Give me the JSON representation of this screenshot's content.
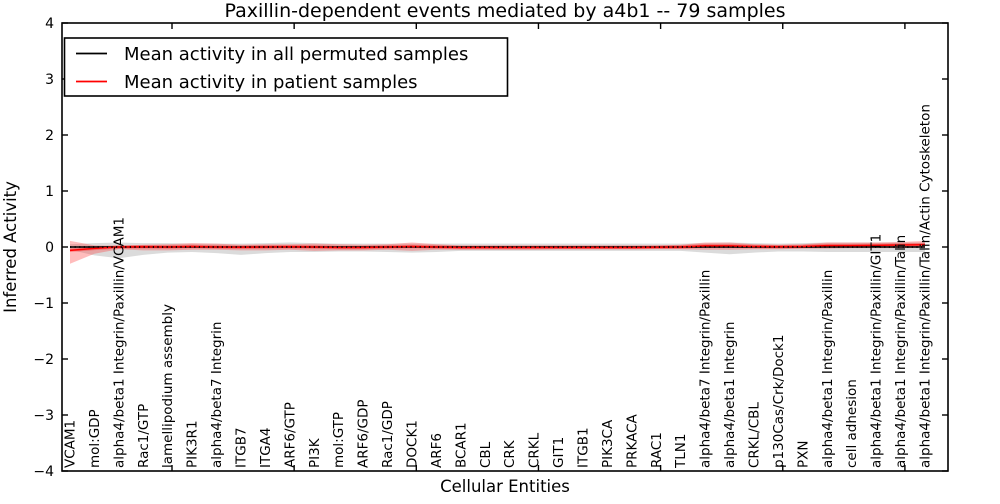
{
  "figure": {
    "background": "#ffffff"
  },
  "chart_data": {
    "type": "line",
    "title": "Paxillin-dependent events mediated by a4b1 -- 79 samples",
    "xlabel": "Cellular Entities",
    "ylabel": "Inferred Activity",
    "ylim": [
      -4,
      4
    ],
    "yticks": [
      -4,
      -3,
      -2,
      -1,
      0,
      1,
      2,
      3,
      4
    ],
    "grid": false,
    "legend": {
      "position": "upper left",
      "entries": [
        {
          "label": "Mean activity in all permuted samples",
          "color": "#000000"
        },
        {
          "label": "Mean activity in patient samples",
          "color": "#ff0000"
        }
      ]
    },
    "categories": [
      "VCAM1",
      "mol:GDP",
      "alpha4/beta1 Integrin/Paxillin/VCAM1",
      "Rac1/GTP",
      "lamellipodium assembly",
      "PIK3R1",
      "alpha4/beta7 Integrin",
      "ITGB7",
      "ITGA4",
      "ARF6/GTP",
      "PI3K",
      "mol:GTP",
      "ARF6/GDP",
      "Rac1/GDP",
      "DOCK1",
      "ARF6",
      "BCAR1",
      "CBL",
      "CRK",
      "CRKL",
      "GIT1",
      "ITGB1",
      "PIK3CA",
      "PRKACA",
      "RAC1",
      "TLN1",
      "alpha4/beta7 Integrin/Paxillin",
      "alpha4/beta1 Integrin",
      "CRKL/CBL",
      "p130Cas/Crk/Dock1",
      "PXN",
      "alpha4/beta1 Integrin/Paxillin",
      "cell adhesion",
      "alpha4/beta1 Integrin/Paxillin/GIT1",
      "alpha4/beta1 Integrin/Paxillin/Talin",
      "alpha4/beta1 Integrin/Paxillin/Talin/Actin Cytoskeleton"
    ],
    "series": [
      {
        "name": "Mean activity in all permuted samples",
        "line_color": "#000000",
        "band_color": "#999999",
        "values": [
          0,
          0,
          0,
          0,
          0,
          0,
          0,
          0,
          0,
          0,
          0,
          0,
          0,
          0,
          0,
          0,
          0,
          0,
          0,
          0,
          0,
          0,
          0,
          0,
          0,
          0,
          0,
          0,
          0,
          0,
          0,
          0,
          0,
          0,
          0,
          0
        ],
        "band_upper": [
          0.05,
          0.07,
          0.08,
          0.07,
          0.07,
          0.06,
          0.06,
          0.06,
          0.07,
          0.08,
          0.07,
          0.06,
          0.06,
          0.06,
          0.06,
          0.06,
          0.06,
          0.06,
          0.06,
          0.06,
          0.06,
          0.06,
          0.06,
          0.06,
          0.06,
          0.06,
          0.07,
          0.08,
          0.07,
          0.06,
          0.07,
          0.08,
          0.08,
          0.08,
          0.08,
          0.08
        ],
        "band_lower": [
          -0.05,
          -0.15,
          -0.2,
          -0.14,
          -0.1,
          -0.09,
          -0.11,
          -0.14,
          -0.11,
          -0.09,
          -0.09,
          -0.08,
          -0.08,
          -0.09,
          -0.1,
          -0.09,
          -0.07,
          -0.07,
          -0.07,
          -0.07,
          -0.07,
          -0.07,
          -0.07,
          -0.07,
          -0.07,
          -0.07,
          -0.1,
          -0.13,
          -0.1,
          -0.08,
          -0.08,
          -0.09,
          -0.09,
          -0.09,
          -0.09,
          -0.09
        ]
      },
      {
        "name": "Mean activity in patient samples",
        "line_color": "#ff0000",
        "band_color": "#ff4040",
        "values": [
          -0.06,
          -0.025,
          0.0,
          0.005,
          0.0,
          0.01,
          0.0,
          -0.005,
          0.0,
          0.005,
          0.0,
          -0.01,
          -0.01,
          0.0,
          0.01,
          0.0,
          -0.01,
          -0.01,
          -0.01,
          -0.01,
          -0.01,
          -0.01,
          -0.01,
          -0.01,
          -0.005,
          0.0,
          0.02,
          0.02,
          0.01,
          0.005,
          0.01,
          0.025,
          0.025,
          0.03,
          0.035,
          0.04
        ],
        "band_upper": [
          0.11,
          0.03,
          0.02,
          0.04,
          0.05,
          0.07,
          0.06,
          0.04,
          0.05,
          0.05,
          0.06,
          0.05,
          0.04,
          0.05,
          0.08,
          0.05,
          0.03,
          0.03,
          0.03,
          0.03,
          0.03,
          0.03,
          0.03,
          0.03,
          0.03,
          0.04,
          0.08,
          0.08,
          0.05,
          0.04,
          0.05,
          0.08,
          0.08,
          0.08,
          0.09,
          0.11
        ],
        "band_lower": [
          -0.3,
          -0.12,
          -0.04,
          -0.06,
          -0.06,
          -0.05,
          -0.05,
          -0.06,
          -0.06,
          -0.05,
          -0.07,
          -0.06,
          -0.06,
          -0.05,
          -0.07,
          -0.05,
          -0.05,
          -0.05,
          -0.05,
          -0.05,
          -0.04,
          -0.04,
          -0.04,
          -0.04,
          -0.04,
          -0.04,
          -0.05,
          -0.05,
          -0.04,
          -0.04,
          -0.03,
          -0.03,
          -0.02,
          -0.02,
          -0.02,
          -0.01
        ]
      }
    ]
  }
}
